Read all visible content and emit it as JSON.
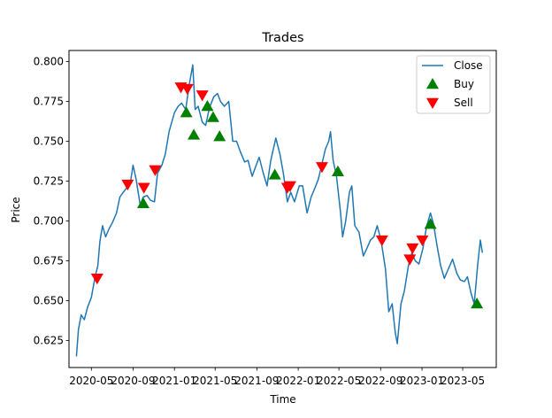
{
  "chart_data": {
    "type": "line",
    "title": "Trades",
    "xlabel": "Time",
    "ylabel": "Price",
    "xlim": [
      "2020-02-25",
      "2023-08-08"
    ],
    "ylim": [
      0.608,
      0.807
    ],
    "grid": false,
    "legend_position": "top-right",
    "x_ticks": [
      {
        "date": "2020-05-01",
        "label": "2020-05"
      },
      {
        "date": "2020-09-01",
        "label": "2020-09"
      },
      {
        "date": "2021-01-01",
        "label": "2021-01"
      },
      {
        "date": "2021-05-01",
        "label": "2021-05"
      },
      {
        "date": "2021-09-01",
        "label": "2021-09"
      },
      {
        "date": "2022-01-01",
        "label": "2022-01"
      },
      {
        "date": "2022-05-01",
        "label": "2022-05"
      },
      {
        "date": "2022-09-01",
        "label": "2022-09"
      },
      {
        "date": "2023-01-01",
        "label": "2023-01"
      },
      {
        "date": "2023-05-01",
        "label": "2023-05"
      }
    ],
    "y_ticks": [
      {
        "value": 0.625,
        "label": "0.625"
      },
      {
        "value": 0.65,
        "label": "0.650"
      },
      {
        "value": 0.675,
        "label": "0.675"
      },
      {
        "value": 0.7,
        "label": "0.700"
      },
      {
        "value": 0.725,
        "label": "0.725"
      },
      {
        "value": 0.75,
        "label": "0.750"
      },
      {
        "value": 0.775,
        "label": "0.775"
      },
      {
        "value": 0.8,
        "label": "0.800"
      }
    ],
    "series": [
      {
        "name": "Close",
        "kind": "line",
        "color": "#1f77b4",
        "points": [
          [
            "2020-03-18",
            0.615
          ],
          [
            "2020-03-24",
            0.632
          ],
          [
            "2020-04-01",
            0.641
          ],
          [
            "2020-04-10",
            0.638
          ],
          [
            "2020-04-20",
            0.646
          ],
          [
            "2020-05-01",
            0.652
          ],
          [
            "2020-05-12",
            0.665
          ],
          [
            "2020-05-20",
            0.672
          ],
          [
            "2020-05-26",
            0.687
          ],
          [
            "2020-06-03",
            0.697
          ],
          [
            "2020-06-12",
            0.69
          ],
          [
            "2020-06-22",
            0.695
          ],
          [
            "2020-07-02",
            0.699
          ],
          [
            "2020-07-14",
            0.705
          ],
          [
            "2020-07-24",
            0.715
          ],
          [
            "2020-08-03",
            0.718
          ],
          [
            "2020-08-14",
            0.721
          ],
          [
            "2020-08-24",
            0.724
          ],
          [
            "2020-09-01",
            0.735
          ],
          [
            "2020-09-10",
            0.726
          ],
          [
            "2020-09-22",
            0.71
          ],
          [
            "2020-10-01",
            0.715
          ],
          [
            "2020-10-12",
            0.716
          ],
          [
            "2020-10-22",
            0.713
          ],
          [
            "2020-11-03",
            0.712
          ],
          [
            "2020-11-12",
            0.73
          ],
          [
            "2020-11-25",
            0.735
          ],
          [
            "2020-12-05",
            0.742
          ],
          [
            "2020-12-16",
            0.756
          ],
          [
            "2021-01-01",
            0.768
          ],
          [
            "2021-01-12",
            0.772
          ],
          [
            "2021-01-22",
            0.774
          ],
          [
            "2021-02-03",
            0.77
          ],
          [
            "2021-02-14",
            0.786
          ],
          [
            "2021-02-24",
            0.798
          ],
          [
            "2021-03-03",
            0.77
          ],
          [
            "2021-03-12",
            0.772
          ],
          [
            "2021-03-24",
            0.762
          ],
          [
            "2021-04-03",
            0.76
          ],
          [
            "2021-04-14",
            0.771
          ],
          [
            "2021-04-27",
            0.778
          ],
          [
            "2021-05-08",
            0.78
          ],
          [
            "2021-05-17",
            0.775
          ],
          [
            "2021-05-28",
            0.772
          ],
          [
            "2021-06-10",
            0.775
          ],
          [
            "2021-06-22",
            0.75
          ],
          [
            "2021-07-03",
            0.75
          ],
          [
            "2021-07-15",
            0.743
          ],
          [
            "2021-07-27",
            0.737
          ],
          [
            "2021-08-06",
            0.738
          ],
          [
            "2021-08-18",
            0.728
          ],
          [
            "2021-08-30",
            0.735
          ],
          [
            "2021-09-08",
            0.74
          ],
          [
            "2021-09-20",
            0.73
          ],
          [
            "2021-10-01",
            0.722
          ],
          [
            "2021-10-12",
            0.738
          ],
          [
            "2021-10-27",
            0.752
          ],
          [
            "2021-11-08",
            0.742
          ],
          [
            "2021-11-18",
            0.73
          ],
          [
            "2021-11-30",
            0.712
          ],
          [
            "2021-12-10",
            0.718
          ],
          [
            "2021-12-21",
            0.712
          ],
          [
            "2022-01-04",
            0.722
          ],
          [
            "2022-01-14",
            0.722
          ],
          [
            "2022-01-27",
            0.705
          ],
          [
            "2022-02-08",
            0.715
          ],
          [
            "2022-02-18",
            0.72
          ],
          [
            "2022-03-01",
            0.726
          ],
          [
            "2022-03-11",
            0.735
          ],
          [
            "2022-03-22",
            0.745
          ],
          [
            "2022-04-01",
            0.75
          ],
          [
            "2022-04-06",
            0.756
          ],
          [
            "2022-04-14",
            0.738
          ],
          [
            "2022-04-24",
            0.728
          ],
          [
            "2022-05-06",
            0.705
          ],
          [
            "2022-05-12",
            0.69
          ],
          [
            "2022-05-21",
            0.7
          ],
          [
            "2022-06-01",
            0.718
          ],
          [
            "2022-06-08",
            0.722
          ],
          [
            "2022-06-17",
            0.697
          ],
          [
            "2022-06-29",
            0.693
          ],
          [
            "2022-07-12",
            0.678
          ],
          [
            "2022-07-23",
            0.683
          ],
          [
            "2022-08-02",
            0.688
          ],
          [
            "2022-08-12",
            0.69
          ],
          [
            "2022-08-22",
            0.697
          ],
          [
            "2022-09-02",
            0.688
          ],
          [
            "2022-09-15",
            0.67
          ],
          [
            "2022-09-25",
            0.643
          ],
          [
            "2022-10-05",
            0.648
          ],
          [
            "2022-10-14",
            0.63
          ],
          [
            "2022-10-20",
            0.623
          ],
          [
            "2022-10-31",
            0.648
          ],
          [
            "2022-11-10",
            0.656
          ],
          [
            "2022-11-22",
            0.672
          ],
          [
            "2022-12-02",
            0.68
          ],
          [
            "2022-12-12",
            0.675
          ],
          [
            "2022-12-23",
            0.673
          ],
          [
            "2023-01-04",
            0.683
          ],
          [
            "2023-01-14",
            0.696
          ],
          [
            "2023-01-26",
            0.705
          ],
          [
            "2023-02-04",
            0.698
          ],
          [
            "2023-02-14",
            0.685
          ],
          [
            "2023-02-25",
            0.672
          ],
          [
            "2023-03-08",
            0.664
          ],
          [
            "2023-03-20",
            0.67
          ],
          [
            "2023-04-01",
            0.676
          ],
          [
            "2023-04-14",
            0.667
          ],
          [
            "2023-04-24",
            0.663
          ],
          [
            "2023-05-06",
            0.662
          ],
          [
            "2023-05-15",
            0.665
          ],
          [
            "2023-05-25",
            0.655
          ],
          [
            "2023-06-04",
            0.648
          ],
          [
            "2023-06-14",
            0.672
          ],
          [
            "2023-06-22",
            0.688
          ],
          [
            "2023-06-28",
            0.68
          ]
        ]
      },
      {
        "name": "Buy",
        "kind": "marker",
        "marker": "triangle-up",
        "color": "#008000",
        "points": [
          [
            "2020-10-01",
            0.711
          ],
          [
            "2021-02-05",
            0.768
          ],
          [
            "2021-02-27",
            0.754
          ],
          [
            "2021-04-08",
            0.772
          ],
          [
            "2021-04-25",
            0.765
          ],
          [
            "2021-05-14",
            0.753
          ],
          [
            "2021-10-24",
            0.729
          ],
          [
            "2022-04-28",
            0.731
          ],
          [
            "2023-01-26",
            0.698
          ],
          [
            "2023-06-12",
            0.648
          ]
        ]
      },
      {
        "name": "Sell",
        "kind": "marker",
        "marker": "triangle-down",
        "color": "#ff0000",
        "points": [
          [
            "2020-05-18",
            0.664
          ],
          [
            "2020-08-16",
            0.723
          ],
          [
            "2020-10-03",
            0.721
          ],
          [
            "2020-11-05",
            0.732
          ],
          [
            "2021-01-20",
            0.784
          ],
          [
            "2021-02-08",
            0.783
          ],
          [
            "2021-03-24",
            0.779
          ],
          [
            "2021-11-30",
            0.721
          ],
          [
            "2021-12-08",
            0.722
          ],
          [
            "2022-03-12",
            0.734
          ],
          [
            "2022-09-05",
            0.688
          ],
          [
            "2022-11-26",
            0.676
          ],
          [
            "2022-12-04",
            0.683
          ],
          [
            "2023-01-02",
            0.688
          ]
        ]
      }
    ]
  }
}
